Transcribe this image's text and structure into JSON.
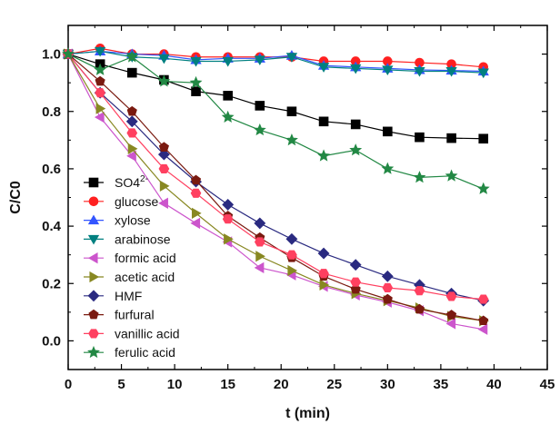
{
  "chart_data": {
    "type": "line",
    "xlabel": "t (min)",
    "ylabel": "C/C0",
    "xlim": [
      0,
      45
    ],
    "ylim": [
      -0.1,
      1.1
    ],
    "xticks": [
      0,
      5,
      10,
      15,
      20,
      25,
      30,
      35,
      40,
      45
    ],
    "yticks": [
      0.0,
      0.2,
      0.4,
      0.6,
      0.8,
      1.0
    ],
    "ytick_labels": [
      "0.0",
      "0.2",
      "0.4",
      "0.6",
      "0.8",
      "1.0"
    ],
    "grid": false,
    "legend_position": "lower-left",
    "x": [
      0,
      3,
      6,
      9,
      12,
      15,
      18,
      21,
      24,
      27,
      30,
      33,
      36,
      39
    ],
    "series": [
      {
        "name": "SO4",
        "superscript": "2-",
        "marker": "square",
        "color": "#000000",
        "values": [
          1.0,
          0.965,
          0.935,
          0.91,
          0.87,
          0.855,
          0.82,
          0.8,
          0.765,
          0.755,
          0.73,
          0.71,
          0.707,
          0.705
        ]
      },
      {
        "name": "glucose",
        "marker": "circle",
        "color": "#ff2020",
        "values": [
          1.0,
          1.02,
          1.0,
          1.0,
          0.99,
          0.99,
          0.99,
          0.99,
          0.975,
          0.975,
          0.975,
          0.97,
          0.965,
          0.955
        ]
      },
      {
        "name": "xylose",
        "marker": "triangle-up",
        "color": "#3355ff",
        "values": [
          1.0,
          1.01,
          1.0,
          0.995,
          0.98,
          0.985,
          0.985,
          0.995,
          0.96,
          0.955,
          0.95,
          0.945,
          0.943,
          0.94
        ]
      },
      {
        "name": "arabinose",
        "marker": "triangle-down",
        "color": "#008080",
        "values": [
          1.0,
          1.01,
          0.99,
          0.985,
          0.975,
          0.975,
          0.98,
          0.99,
          0.955,
          0.95,
          0.945,
          0.94,
          0.94,
          0.935
        ]
      },
      {
        "name": "formic acid",
        "marker": "triangle-left",
        "color": "#cc55cc",
        "values": [
          1.0,
          0.78,
          0.645,
          0.48,
          0.41,
          0.345,
          0.255,
          0.23,
          0.19,
          0.16,
          0.135,
          0.105,
          0.06,
          0.04
        ]
      },
      {
        "name": "acetic acid",
        "marker": "triangle-right",
        "color": "#888822",
        "values": [
          1.0,
          0.81,
          0.67,
          0.54,
          0.445,
          0.355,
          0.295,
          0.245,
          0.195,
          0.165,
          0.14,
          0.115,
          0.085,
          0.07
        ]
      },
      {
        "name": "HMF",
        "marker": "diamond",
        "color": "#2a2a80",
        "values": [
          1.0,
          0.865,
          0.765,
          0.65,
          0.555,
          0.475,
          0.41,
          0.355,
          0.305,
          0.265,
          0.225,
          0.195,
          0.165,
          0.14
        ]
      },
      {
        "name": "furfural",
        "marker": "pentagon",
        "color": "#7a1a10",
        "values": [
          1.0,
          0.905,
          0.8,
          0.675,
          0.56,
          0.435,
          0.36,
          0.29,
          0.225,
          0.18,
          0.145,
          0.11,
          0.09,
          0.07
        ]
      },
      {
        "name": "vanillic acid",
        "marker": "hexagon",
        "color": "#ff4060",
        "values": [
          1.0,
          0.865,
          0.725,
          0.6,
          0.515,
          0.425,
          0.345,
          0.3,
          0.235,
          0.205,
          0.185,
          0.175,
          0.155,
          0.145
        ]
      },
      {
        "name": "ferulic acid",
        "marker": "star",
        "color": "#228844",
        "values": [
          1.0,
          0.945,
          0.99,
          0.905,
          0.9,
          0.78,
          0.735,
          0.7,
          0.645,
          0.665,
          0.6,
          0.57,
          0.575,
          0.53
        ]
      }
    ]
  }
}
